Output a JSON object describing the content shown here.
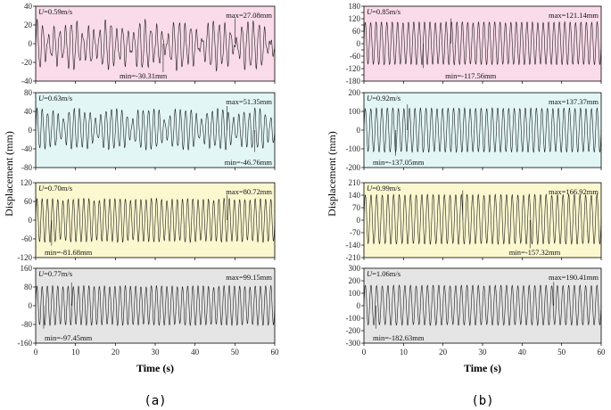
{
  "caption_a": "(a)",
  "caption_b": "(b)",
  "ylabel": "Displacement (mm)",
  "xlabel": "Time (s)",
  "colors": {
    "pink": "#f9dbe9",
    "cyan": "#e3f6f6",
    "yellow": "#fbf7cf",
    "gray": "#e5e5e5",
    "line": "#1a1a1a"
  },
  "chart_data": [
    {
      "type": "line",
      "group": "a",
      "bg": "pink",
      "velocity": "0.59m/s",
      "max_label": "max=27.08mm",
      "min_label": "min=-30.31mm",
      "max": 27.08,
      "min": -30.31,
      "ylim": [
        -40,
        40
      ],
      "yticks": [
        -40,
        -20,
        0,
        20,
        40
      ],
      "xlim": [
        0,
        60
      ],
      "xticks": [
        0,
        10,
        20,
        30,
        40,
        50,
        60
      ],
      "show_xticks": false,
      "cycles": 42,
      "irregular": 0.85,
      "max_t": 50,
      "min_t": 32
    },
    {
      "type": "line",
      "group": "a",
      "bg": "cyan",
      "velocity": "0.63m/s",
      "max_label": "max=51.35mm",
      "min_label": "min=-46.76mm",
      "max": 51.35,
      "min": -46.76,
      "ylim": [
        -80,
        80
      ],
      "yticks": [
        -80,
        -40,
        0,
        40,
        80
      ],
      "xlim": [
        0,
        60
      ],
      "xticks": [
        0,
        10,
        20,
        30,
        40,
        50,
        60
      ],
      "show_xticks": false,
      "cycles": 45,
      "irregular": 0.55,
      "max_t": 48,
      "min_t": 55
    },
    {
      "type": "line",
      "group": "a",
      "bg": "yellow",
      "velocity": "0.70m/s",
      "max_label": "max=80.72mm",
      "min_label": "min=-81.68mm",
      "max": 80.72,
      "min": -81.68,
      "ylim": [
        -120,
        120
      ],
      "yticks": [
        -120,
        -60,
        0,
        60,
        120
      ],
      "xlim": [
        0,
        60
      ],
      "xticks": [
        0,
        10,
        20,
        30,
        40,
        50,
        60
      ],
      "show_xticks": false,
      "cycles": 46,
      "irregular": 0.12,
      "max_t": 48,
      "min_t": 4
    },
    {
      "type": "line",
      "group": "a",
      "bg": "gray",
      "velocity": "0.77m/s",
      "max_label": "max=99.15mm",
      "min_label": "min=-97.45mm",
      "max": 99.15,
      "min": -97.45,
      "ylim": [
        -160,
        160
      ],
      "yticks": [
        -160,
        -80,
        0,
        80,
        160
      ],
      "xlim": [
        0,
        60
      ],
      "xticks": [
        0,
        10,
        20,
        30,
        40,
        50,
        60
      ],
      "show_xticks": true,
      "cycles": 46,
      "irregular": 0.08,
      "max_t": 9,
      "min_t": 2
    },
    {
      "type": "line",
      "group": "b",
      "bg": "pink",
      "velocity": "0.85m/s",
      "max_label": "max=121.14mm",
      "min_label": "min=-117.56mm",
      "max": 121.14,
      "min": -117.56,
      "ylim": [
        -180,
        180
      ],
      "yticks": [
        -180,
        -150,
        -120,
        -90,
        -60,
        -30,
        0,
        30,
        60,
        90,
        120,
        150,
        180
      ],
      "ytick_labels": [
        -180,
        -120,
        -60,
        0,
        60,
        120,
        180
      ],
      "xlim": [
        0,
        60
      ],
      "xticks": [
        0,
        10,
        20,
        30,
        40,
        50,
        60
      ],
      "show_xticks": false,
      "cycles": 44,
      "irregular": 0.04,
      "max_t": 22,
      "min_t": 15
    },
    {
      "type": "line",
      "group": "b",
      "bg": "cyan",
      "velocity": "0.92m/s",
      "max_label": "max=137.37mm",
      "min_label": "min=-137.05mm",
      "max": 137.37,
      "min": -137.05,
      "ylim": [
        -200,
        200
      ],
      "yticks": [
        -200,
        -100,
        0,
        100,
        200
      ],
      "xlim": [
        0,
        60
      ],
      "xticks": [
        0,
        10,
        20,
        30,
        40,
        50,
        60
      ],
      "show_xticks": false,
      "cycles": 43,
      "irregular": 0.04,
      "max_t": 11,
      "min_t": 8
    },
    {
      "type": "line",
      "group": "b",
      "bg": "yellow",
      "velocity": "0.99m/s",
      "max_label": "max=166.92mm",
      "min_label": "min=-157.32mm",
      "max": 166.92,
      "min": -157.32,
      "ylim": [
        -210,
        210
      ],
      "yticks": [
        -210,
        -140,
        -70,
        0,
        70,
        140,
        210
      ],
      "xlim": [
        0,
        60
      ],
      "xticks": [
        0,
        10,
        20,
        30,
        40,
        50,
        60
      ],
      "show_xticks": false,
      "cycles": 42,
      "irregular": 0.04,
      "max_t": 25,
      "min_t": 42
    },
    {
      "type": "line",
      "group": "b",
      "bg": "gray",
      "velocity": "1.06m/s",
      "max_label": "max=190.41mm",
      "min_label": "min=-182.63mm",
      "max": 190.41,
      "min": -182.63,
      "ylim": [
        -300,
        300
      ],
      "yticks": [
        -300,
        -200,
        -100,
        0,
        100,
        200,
        300
      ],
      "xlim": [
        0,
        60
      ],
      "xticks": [
        0,
        10,
        20,
        30,
        40,
        50,
        60
      ],
      "show_xticks": true,
      "cycles": 42,
      "irregular": 0.04,
      "max_t": 48,
      "min_t": 3
    }
  ]
}
